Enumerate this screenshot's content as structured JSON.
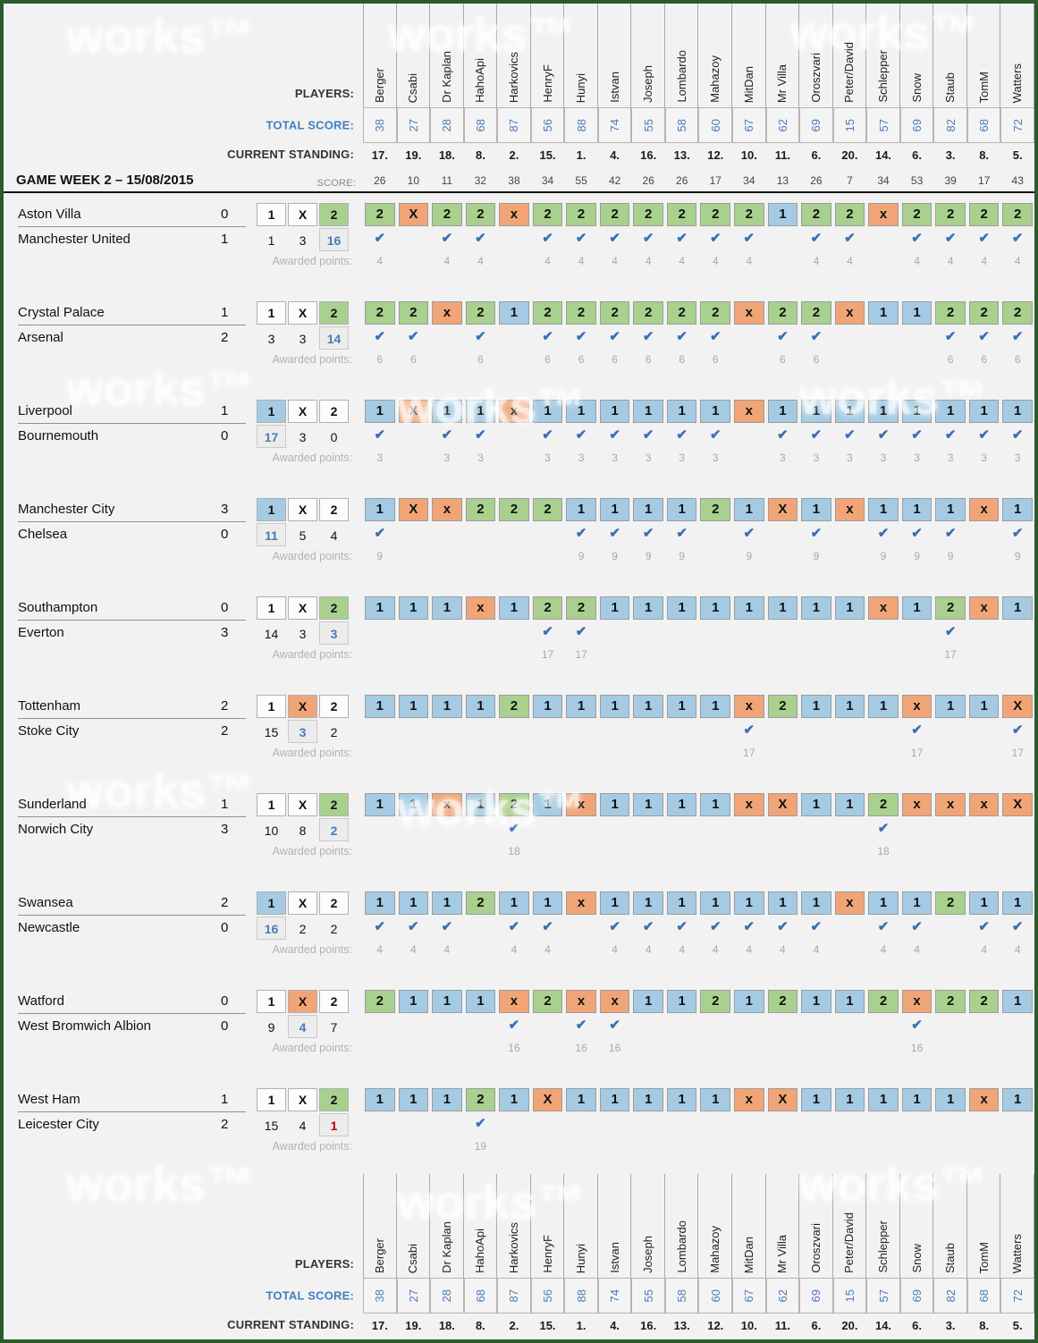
{
  "watermark": "works™",
  "labels": {
    "players": "PLAYERS:",
    "total_score": "TOTAL SCORE:",
    "current_standing": "CURRENT STANDING:",
    "score": "SCORE:",
    "awarded_points": "Awarded points:"
  },
  "players": [
    "Berger",
    "Csabi",
    "Dr Kaplan",
    "HahoApi",
    "Harkovics",
    "HenryF",
    "Hunyi",
    "Istvan",
    "Joseph",
    "Lombardo",
    "Mahazoy",
    "MitDan",
    "Mr Villa",
    "Oroszvari",
    "Peter/David",
    "Schlepper",
    "Snow",
    "Staub",
    "TomM",
    "Watters"
  ],
  "total_scores": [
    "38",
    "27",
    "28",
    "68",
    "87",
    "56",
    "88",
    "74",
    "55",
    "58",
    "60",
    "67",
    "62",
    "69",
    "15",
    "57",
    "69",
    "82",
    "68",
    "72"
  ],
  "standings": [
    "17.",
    "19.",
    "18.",
    "8.",
    "2.",
    "15.",
    "1.",
    "4.",
    "16.",
    "13.",
    "12.",
    "10.",
    "11.",
    "6.",
    "20.",
    "14.",
    "6.",
    "3.",
    "8.",
    "5."
  ],
  "gameweek": {
    "title": "GAME WEEK 2 – 15/08/2015",
    "scores": [
      "26",
      "10",
      "11",
      "32",
      "38",
      "34",
      "55",
      "42",
      "26",
      "26",
      "17",
      "34",
      "13",
      "26",
      "7",
      "34",
      "53",
      "39",
      "17",
      "43"
    ]
  },
  "bet_options": [
    "1",
    "X",
    "2"
  ],
  "matches": [
    {
      "home": "Aston Villa",
      "home_score": "0",
      "away": "Manchester United",
      "away_score": "1",
      "result": "2",
      "odds": [
        "1",
        "3",
        "16"
      ],
      "odds_highlight_index": 2,
      "odds_highlight_color": "blue",
      "points": "4",
      "predictions": [
        "2",
        "X",
        "2",
        "2",
        "x",
        "2",
        "2",
        "2",
        "2",
        "2",
        "2",
        "2",
        "1",
        "2",
        "2",
        "x",
        "2",
        "2",
        "2",
        "2"
      ]
    },
    {
      "home": "Crystal Palace",
      "home_score": "1",
      "away": "Arsenal",
      "away_score": "2",
      "result": "2",
      "odds": [
        "3",
        "3",
        "14"
      ],
      "odds_highlight_index": 2,
      "odds_highlight_color": "blue",
      "points": "6",
      "predictions": [
        "2",
        "2",
        "x",
        "2",
        "1",
        "2",
        "2",
        "2",
        "2",
        "2",
        "2",
        "x",
        "2",
        "2",
        "x",
        "1",
        "1",
        "2",
        "2",
        "2"
      ]
    },
    {
      "home": "Liverpool",
      "home_score": "1",
      "away": "Bournemouth",
      "away_score": "0",
      "result": "1",
      "odds": [
        "17",
        "3",
        "0"
      ],
      "odds_highlight_index": 0,
      "odds_highlight_color": "blue",
      "points": "3",
      "predictions": [
        "1",
        "X",
        "1",
        "1",
        "x",
        "1",
        "1",
        "1",
        "1",
        "1",
        "1",
        "x",
        "1",
        "1",
        "1",
        "1",
        "1",
        "1",
        "1",
        "1"
      ]
    },
    {
      "home": "Manchester City",
      "home_score": "3",
      "away": "Chelsea",
      "away_score": "0",
      "result": "1",
      "odds": [
        "11",
        "5",
        "4"
      ],
      "odds_highlight_index": 0,
      "odds_highlight_color": "blue",
      "points": "9",
      "predictions": [
        "1",
        "X",
        "x",
        "2",
        "2",
        "2",
        "1",
        "1",
        "1",
        "1",
        "2",
        "1",
        "X",
        "1",
        "x",
        "1",
        "1",
        "1",
        "x",
        "1"
      ]
    },
    {
      "home": "Southampton",
      "home_score": "0",
      "away": "Everton",
      "away_score": "3",
      "result": "2",
      "odds": [
        "14",
        "3",
        "3"
      ],
      "odds_highlight_index": 2,
      "odds_highlight_color": "blue",
      "points": "17",
      "predictions": [
        "1",
        "1",
        "1",
        "x",
        "1",
        "2",
        "2",
        "1",
        "1",
        "1",
        "1",
        "1",
        "1",
        "1",
        "1",
        "x",
        "1",
        "2",
        "x",
        "1"
      ]
    },
    {
      "home": "Tottenham",
      "home_score": "2",
      "away": "Stoke City",
      "away_score": "2",
      "result": "X",
      "odds": [
        "15",
        "3",
        "2"
      ],
      "odds_highlight_index": 1,
      "odds_highlight_color": "blue",
      "points": "17",
      "predictions": [
        "1",
        "1",
        "1",
        "1",
        "2",
        "1",
        "1",
        "1",
        "1",
        "1",
        "1",
        "x",
        "2",
        "1",
        "1",
        "1",
        "x",
        "1",
        "1",
        "X"
      ]
    },
    {
      "home": "Sunderland",
      "home_score": "1",
      "away": "Norwich City",
      "away_score": "3",
      "result": "2",
      "odds": [
        "10",
        "8",
        "2"
      ],
      "odds_highlight_index": 2,
      "odds_highlight_color": "blue",
      "points": "18",
      "predictions": [
        "1",
        "1",
        "x",
        "1",
        "2",
        "1",
        "x",
        "1",
        "1",
        "1",
        "1",
        "x",
        "X",
        "1",
        "1",
        "2",
        "x",
        "x",
        "x",
        "X"
      ]
    },
    {
      "home": "Swansea",
      "home_score": "2",
      "away": "Newcastle",
      "away_score": "0",
      "result": "1",
      "odds": [
        "16",
        "2",
        "2"
      ],
      "odds_highlight_index": 0,
      "odds_highlight_color": "blue",
      "points": "4",
      "predictions": [
        "1",
        "1",
        "1",
        "2",
        "1",
        "1",
        "x",
        "1",
        "1",
        "1",
        "1",
        "1",
        "1",
        "1",
        "x",
        "1",
        "1",
        "2",
        "1",
        "1"
      ]
    },
    {
      "home": "Watford",
      "home_score": "0",
      "away": "West Bromwich Albion",
      "away_score": "0",
      "result": "X",
      "odds": [
        "9",
        "4",
        "7"
      ],
      "odds_highlight_index": 1,
      "odds_highlight_color": "blue",
      "points": "16",
      "predictions": [
        "2",
        "1",
        "1",
        "1",
        "x",
        "2",
        "x",
        "x",
        "1",
        "1",
        "2",
        "1",
        "2",
        "1",
        "1",
        "2",
        "x",
        "2",
        "2",
        "1"
      ]
    },
    {
      "home": "West Ham",
      "home_score": "1",
      "away": "Leicester City",
      "away_score": "2",
      "result": "2",
      "odds": [
        "15",
        "4",
        "1"
      ],
      "odds_highlight_index": 2,
      "odds_highlight_color": "red",
      "points": "19",
      "predictions": [
        "1",
        "1",
        "1",
        "2",
        "1",
        "X",
        "1",
        "1",
        "1",
        "1",
        "1",
        "x",
        "X",
        "1",
        "1",
        "1",
        "1",
        "1",
        "x",
        "1"
      ]
    }
  ],
  "symbols": {
    "check": "✔"
  },
  "colors": {
    "home_win_cell": "#a5cbe4",
    "draw_cell": "#f1a576",
    "away_win_cell": "#a9d08e",
    "check": "#3a6fb5",
    "score_text_blue": "#4a7ab8",
    "odds_red": "#c00000",
    "frame_green": "#2a5c2b"
  }
}
